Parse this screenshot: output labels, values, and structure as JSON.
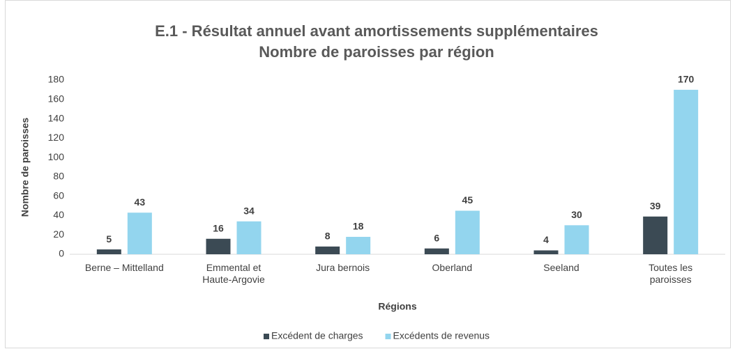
{
  "chart_data": {
    "type": "bar",
    "title": "E.1 - Résultat annuel avant amortissements supplémentaires",
    "subtitle": "Nombre de paroisses par région",
    "x_label": "Régions",
    "y_label": "Nombre de paroisses",
    "categories": [
      "Berne – Mittelland",
      "Emmental et\nHaute-Argovie",
      "Jura bernois",
      "Oberland",
      "Seeland",
      "Toutes les\nparoisses"
    ],
    "series": [
      {
        "name": "Excédent de charges",
        "color": "#3b4a54",
        "values": [
          5,
          16,
          8,
          6,
          4,
          39
        ]
      },
      {
        "name": "Excédents de revenus",
        "color": "#93d5ee",
        "values": [
          43,
          34,
          18,
          45,
          30,
          170
        ]
      }
    ],
    "ylim": [
      0,
      180
    ],
    "yticks": [
      0,
      20,
      40,
      60,
      80,
      100,
      120,
      140,
      160,
      180
    ],
    "grid": false,
    "legend": "bottom"
  }
}
